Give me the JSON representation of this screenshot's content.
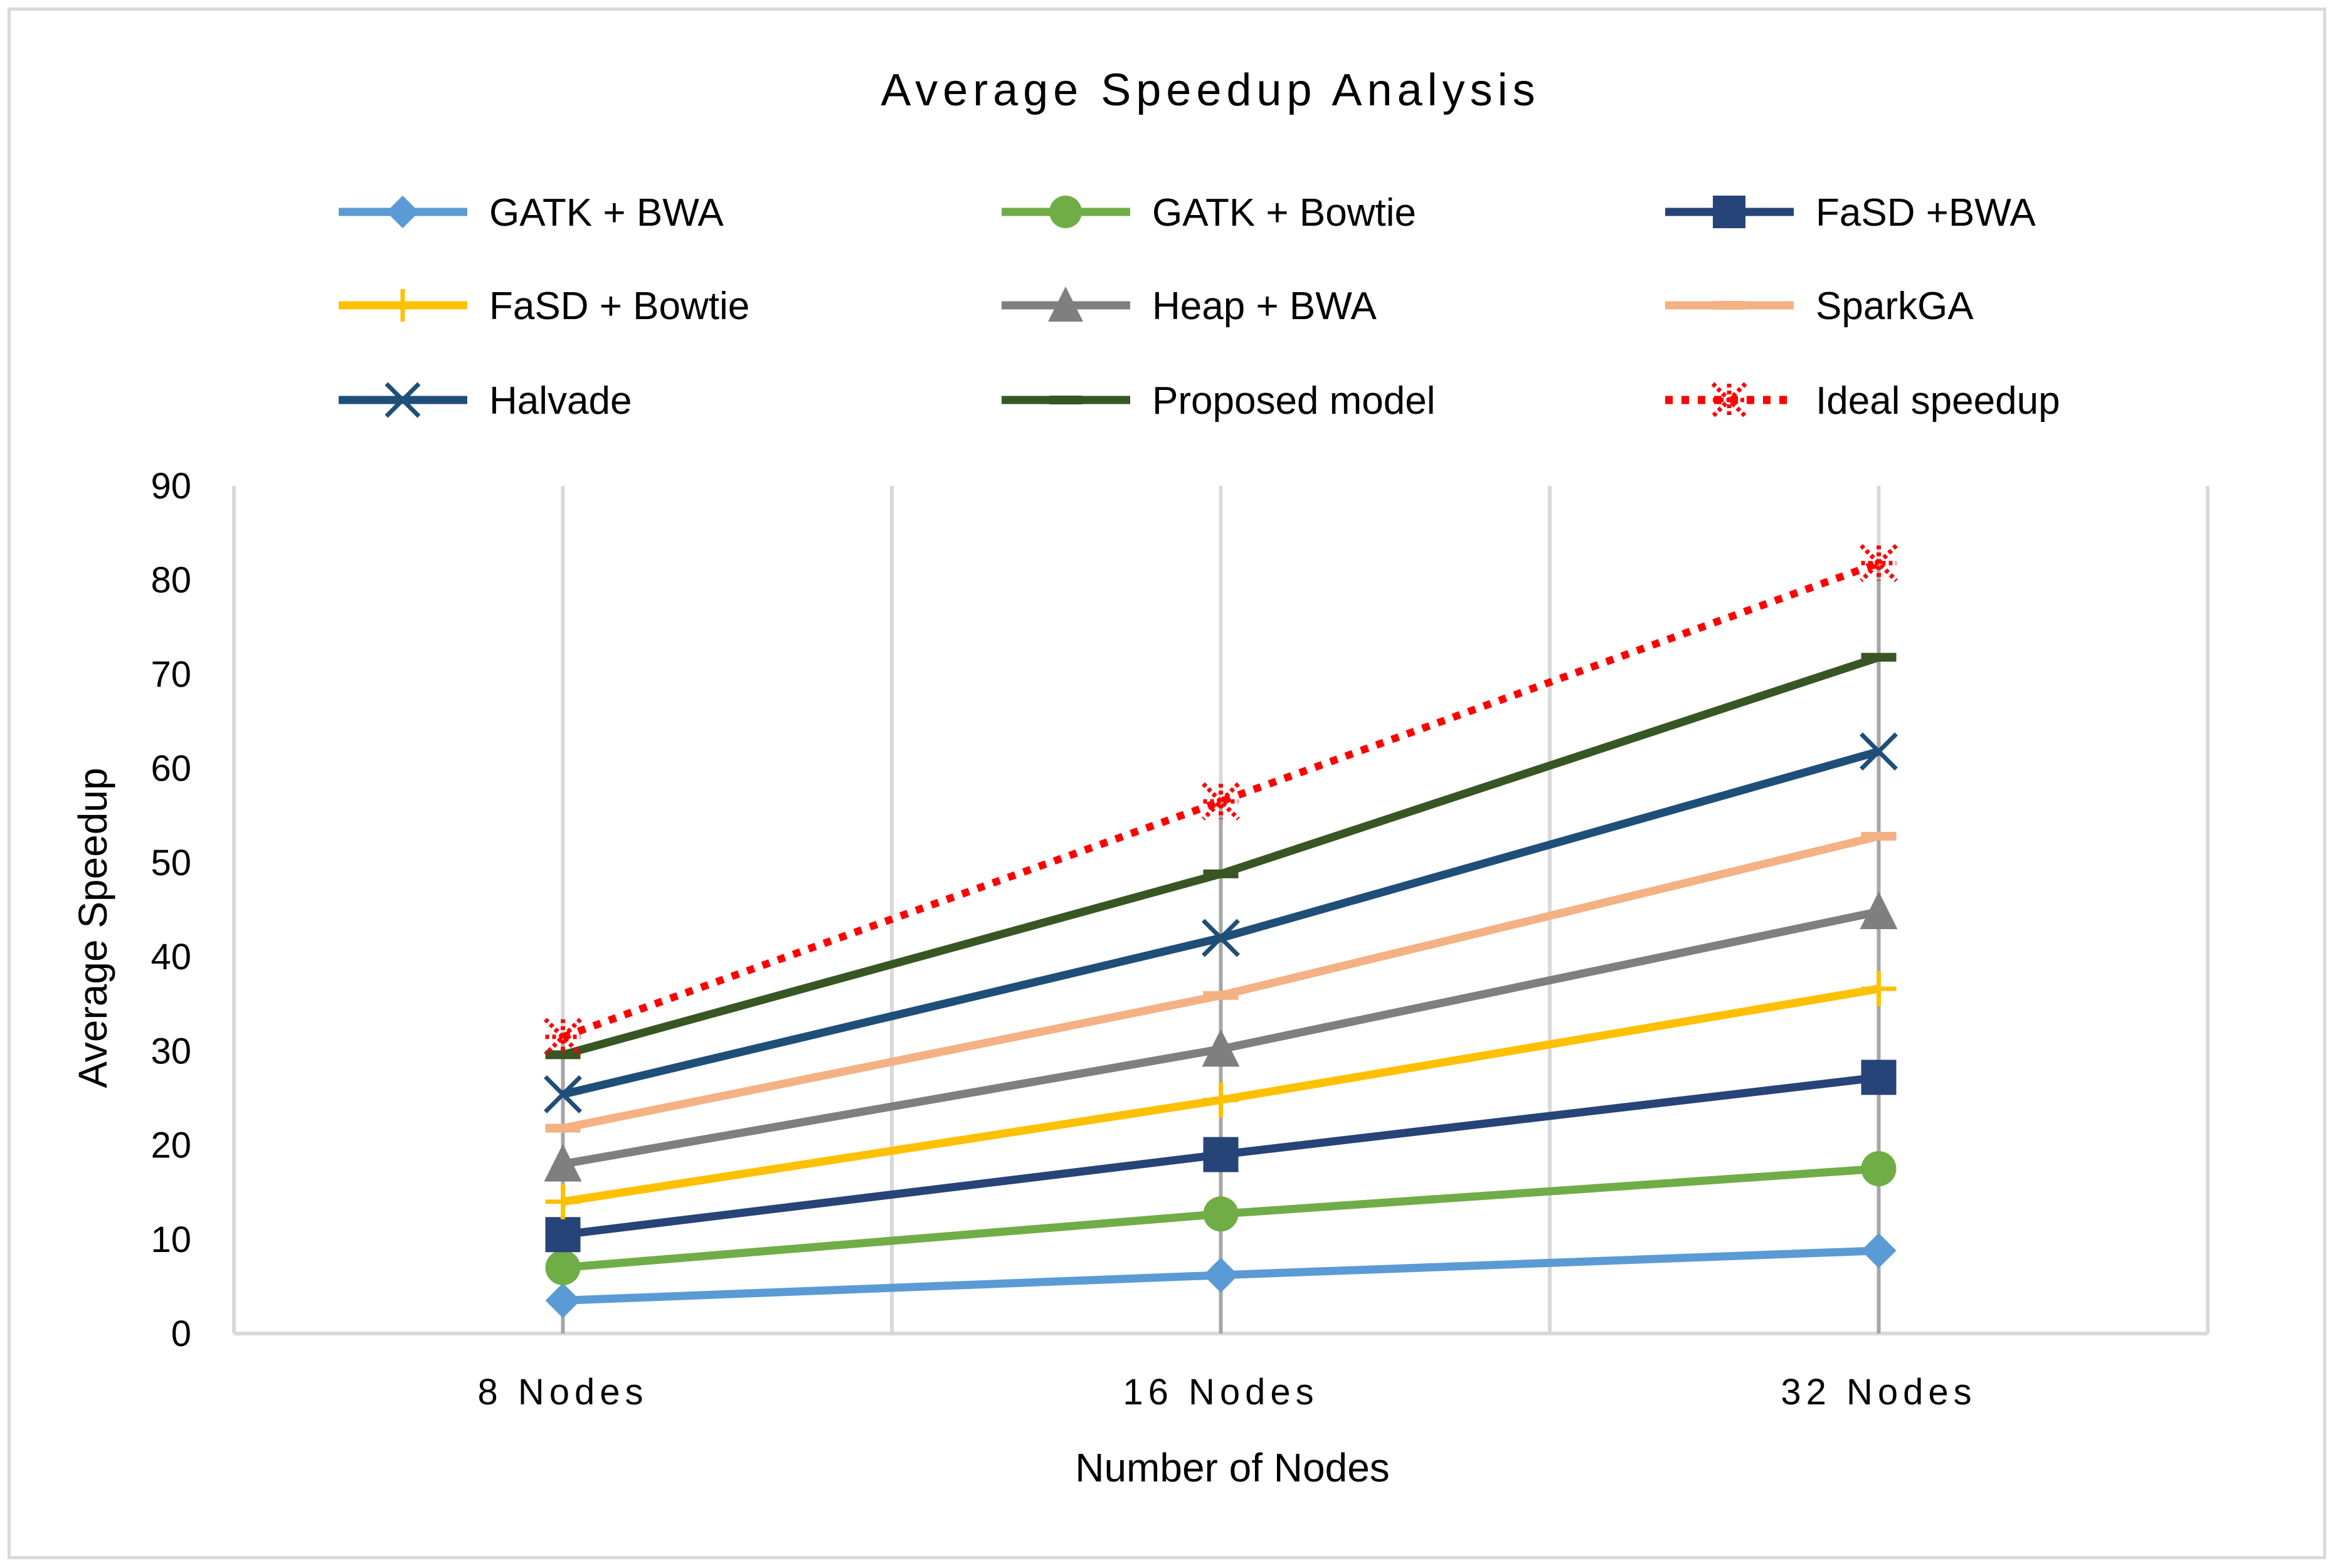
{
  "chart_data": {
    "type": "line",
    "title": "Average Speedup Analysis",
    "xlabel": "Number of Nodes",
    "ylabel": "Average Speedup",
    "categories": [
      "8 Nodes",
      "16 Nodes",
      "32 Nodes"
    ],
    "ylim": [
      0,
      90
    ],
    "yticks": [
      0,
      10,
      20,
      30,
      40,
      50,
      60,
      70,
      80,
      90
    ],
    "grid": "vertical",
    "legend_position": "top",
    "series": [
      {
        "name": "GATK + BWA",
        "values": [
          3.5,
          6.2,
          8.8
        ],
        "color": "#5b9bd5",
        "marker": "diamond",
        "dash": "solid"
      },
      {
        "name": "GATK + Bowtie",
        "values": [
          7.0,
          12.7,
          17.5
        ],
        "color": "#70ad47",
        "marker": "circle",
        "dash": "solid"
      },
      {
        "name": "FaSD +BWA",
        "values": [
          10.5,
          19.0,
          27.2
        ],
        "color": "#264478",
        "marker": "square",
        "dash": "solid"
      },
      {
        "name": "FaSD + Bowtie",
        "values": [
          14.0,
          24.8,
          36.6
        ],
        "color": "#ffc000",
        "marker": "plus",
        "dash": "solid"
      },
      {
        "name": "Heap + BWA",
        "values": [
          18.0,
          30.2,
          44.8
        ],
        "color": "#7f7f7f",
        "marker": "triangle",
        "dash": "solid"
      },
      {
        "name": "SparkGA",
        "values": [
          21.8,
          35.9,
          52.8
        ],
        "color": "#f4b183",
        "marker": "dash",
        "dash": "solid"
      },
      {
        "name": "Halvade",
        "values": [
          25.4,
          42.0,
          61.8
        ],
        "color": "#1f4e79",
        "marker": "x",
        "dash": "solid"
      },
      {
        "name": "Proposed model",
        "values": [
          29.6,
          48.8,
          71.8
        ],
        "color": "#375623",
        "marker": "dash",
        "dash": "solid"
      },
      {
        "name": "Ideal speedup",
        "values": [
          31.5,
          56.5,
          81.8
        ],
        "color": "#ff0000",
        "marker": "star",
        "dash": "dotted"
      }
    ]
  }
}
